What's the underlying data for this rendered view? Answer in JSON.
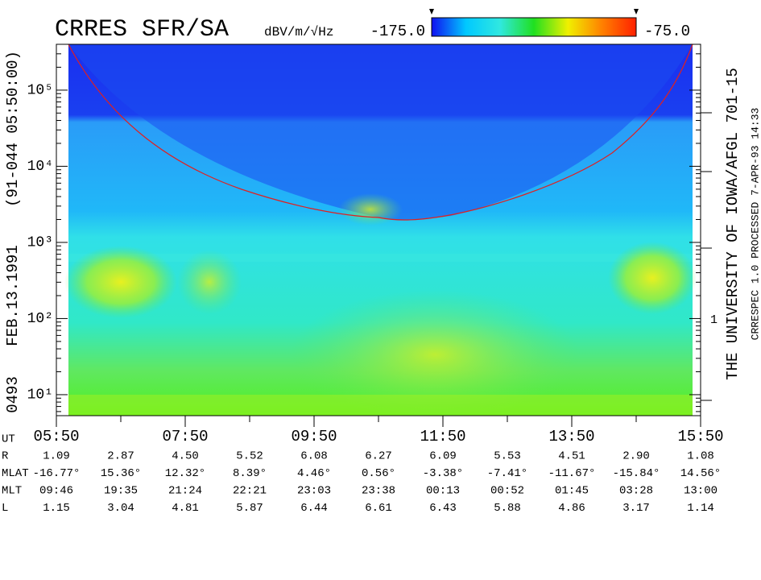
{
  "chart_data": {
    "type": "spectrogram",
    "title": "CRRES SFR/SA",
    "colorbar": {
      "label": "dBV/m/√Hz",
      "lim": [
        {
          "value": -175,
          "label": "-175.0"
        },
        {
          "value": -75,
          "label": "-75.0"
        }
      ],
      "colors": [
        "#1010f0",
        "#00c8ff",
        "#30e8e0",
        "#20e020",
        "#f0f000",
        "#ff8000",
        "#ff2000"
      ]
    },
    "left_labels": [
      "0493",
      "FEB.13.1991",
      "(91-044 05:50:00)"
    ],
    "right_labels": [
      "THE UNIVERSITY OF IOWA/AFGL 701-15",
      "CRRESPEC 1.0   PROCESSED   7-APR-93  14:33"
    ],
    "right_axis_label": "1",
    "log_y": true,
    "ylim": [
      5.3,
      400000
    ],
    "yticks": [
      {
        "value": 10,
        "label": "10¹"
      },
      {
        "value": 100,
        "label": "10²"
      },
      {
        "value": 1000,
        "label": "10³"
      },
      {
        "value": 10000,
        "label": "10⁴"
      },
      {
        "value": 100000,
        "label": "10⁵"
      }
    ],
    "xlim": [
      350,
      950
    ],
    "xticks": [
      {
        "value": 350,
        "label": "05:50"
      },
      {
        "value": 470,
        "label": "07:50"
      },
      {
        "value": 590,
        "label": "09:50"
      },
      {
        "value": 710,
        "label": "11:50"
      },
      {
        "value": 830,
        "label": "13:50"
      },
      {
        "value": 950,
        "label": "15:50"
      }
    ],
    "xminor": [
      410,
      530,
      650,
      770,
      890
    ],
    "ephemeris": {
      "time_label": "UT",
      "rows": [
        {
          "label": "R",
          "values": [
            "1.09",
            "2.87",
            "4.50",
            "5.52",
            "6.08",
            "6.27",
            "6.09",
            "5.53",
            "4.51",
            "2.90",
            "1.08"
          ]
        },
        {
          "label": "MLAT",
          "values": [
            "-16.77°",
            "15.36°",
            "12.32°",
            "8.39°",
            "4.46°",
            "0.56°",
            "-3.38°",
            "-7.41°",
            "-11.67°",
            "-15.84°",
            "14.56°"
          ]
        },
        {
          "label": "MLT",
          "values": [
            "09:46",
            "19:35",
            "21:24",
            "22:21",
            "23:03",
            "23:38",
            "00:13",
            "00:52",
            "01:45",
            "03:28",
            "13:00"
          ]
        },
        {
          "label": "L",
          "values": [
            "1.15",
            "3.04",
            "4.81",
            "5.87",
            "6.44",
            "6.61",
            "6.43",
            "5.88",
            "4.86",
            "3.17",
            "1.14"
          ]
        }
      ]
    }
  }
}
